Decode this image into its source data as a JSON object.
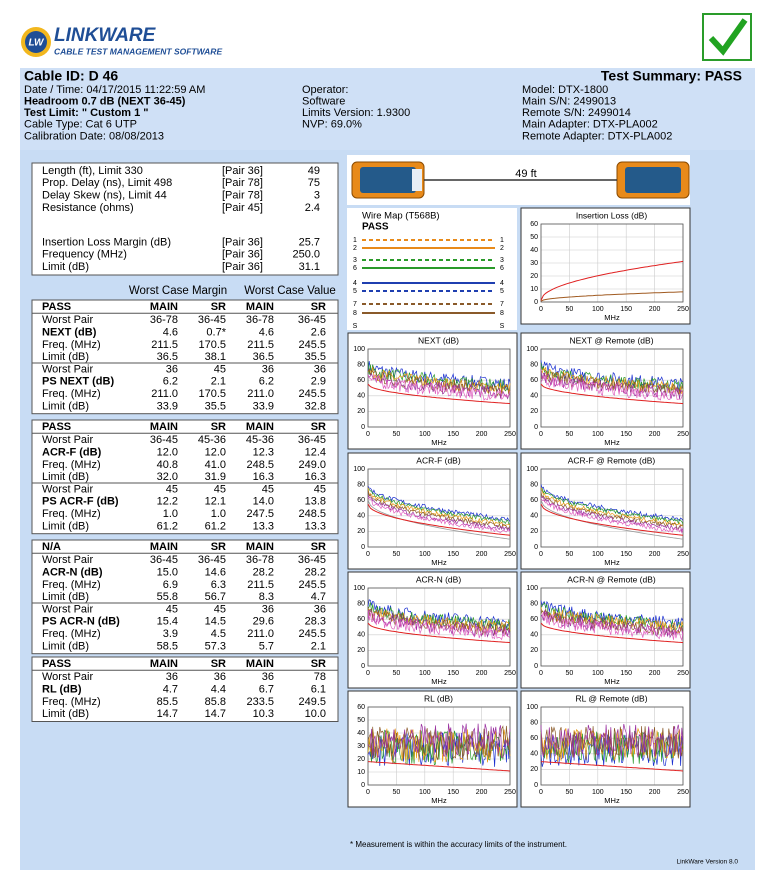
{
  "header": {
    "badge": "LW",
    "title": "LINKWARE",
    "subtitle": "CABLE TEST MANAGEMENT SOFTWARE"
  },
  "summary": {
    "cable_id": "Cable ID: D 46",
    "test_summary": "Test Summary: PASS",
    "left": [
      "Date / Time: 04/17/2015  11:22:59 AM",
      "Headroom 0.7 dB (NEXT 36-45)",
      "Test Limit: \" Custom 1 \"",
      "Cable Type: Cat 6 UTP",
      "Calibration Date: 08/08/2013"
    ],
    "middle": [
      "Operator:",
      "Software",
      "Limits Version: 1.9300",
      "NVP: 69.0%"
    ],
    "right": [
      "Model: DTX-1800",
      "Main S/N: 2499013",
      "Remote S/N: 2499014",
      "Main Adapter: DTX-PLA002",
      "Remote Adapter: DTX-PLA002"
    ]
  },
  "measurements": [
    [
      "Length (ft), Limit 330",
      "[Pair 36]",
      "49"
    ],
    [
      "Prop. Delay (ns), Limit 498",
      "[Pair 78]",
      "75"
    ],
    [
      "Delay Skew (ns), Limit 44",
      "[Pair 78]",
      "3"
    ],
    [
      "Resistance (ohms)",
      "[Pair 45]",
      "2.4"
    ],
    null,
    [
      "Insertion Loss Margin (dB)",
      "[Pair 36]",
      "25.7"
    ],
    [
      "Frequency (MHz)",
      "[Pair 36]",
      "250.0"
    ],
    [
      "Limit (dB)",
      "[Pair 36]",
      "31.1"
    ]
  ],
  "table": {
    "group_headers": [
      "Worst Case Margin",
      "Worst Case Value"
    ],
    "sections": [
      {
        "header": [
          "PASS",
          "MAIN",
          "SR",
          "MAIN",
          "SR"
        ],
        "rows": [
          [
            "Worst Pair",
            "36-78",
            "36-45",
            "36-78",
            "36-45"
          ],
          [
            "NEXT (dB)",
            "4.6",
            "0.7*",
            "4.6",
            "2.6"
          ],
          [
            "Freq. (MHz)",
            "211.5",
            "170.5",
            "211.5",
            "245.5"
          ],
          [
            "Limit (dB)",
            "36.5",
            "38.1",
            "36.5",
            "35.5"
          ],
          [
            "Worst Pair",
            "36",
            "45",
            "36",
            "36"
          ],
          [
            "PS NEXT (dB)",
            "6.2",
            "2.1",
            "6.2",
            "2.9"
          ],
          [
            "Freq. (MHz)",
            "211.0",
            "170.5",
            "211.0",
            "245.5"
          ],
          [
            "Limit (dB)",
            "33.9",
            "35.5",
            "33.9",
            "32.8"
          ]
        ]
      },
      {
        "header": [
          "PASS",
          "MAIN",
          "SR",
          "MAIN",
          "SR"
        ],
        "rows": [
          [
            "Worst Pair",
            "36-45",
            "45-36",
            "45-36",
            "36-45"
          ],
          [
            "ACR-F (dB)",
            "12.0",
            "12.0",
            "12.3",
            "12.4"
          ],
          [
            "Freq. (MHz)",
            "40.8",
            "41.0",
            "248.5",
            "249.0"
          ],
          [
            "Limit (dB)",
            "32.0",
            "31.9",
            "16.3",
            "16.3"
          ],
          [
            "Worst Pair",
            "45",
            "45",
            "45",
            "45"
          ],
          [
            "PS ACR-F (dB)",
            "12.2",
            "12.1",
            "14.0",
            "13.8"
          ],
          [
            "Freq. (MHz)",
            "1.0",
            "1.0",
            "247.5",
            "248.5"
          ],
          [
            "Limit (dB)",
            "61.2",
            "61.2",
            "13.3",
            "13.3"
          ]
        ]
      },
      {
        "header": [
          "N/A",
          "MAIN",
          "SR",
          "MAIN",
          "SR"
        ],
        "rows": [
          [
            "Worst Pair",
            "36-45",
            "36-45",
            "36-78",
            "36-45"
          ],
          [
            "ACR-N (dB)",
            "15.0",
            "14.6",
            "28.2",
            "28.2"
          ],
          [
            "Freq. (MHz)",
            "6.9",
            "6.3",
            "211.5",
            "245.5"
          ],
          [
            "Limit (dB)",
            "55.8",
            "56.7",
            "8.3",
            "4.7"
          ],
          [
            "Worst Pair",
            "45",
            "45",
            "36",
            "36"
          ],
          [
            "PS ACR-N (dB)",
            "15.4",
            "14.5",
            "29.6",
            "28.3"
          ],
          [
            "Freq. (MHz)",
            "3.9",
            "4.5",
            "211.0",
            "245.5"
          ],
          [
            "Limit (dB)",
            "58.5",
            "57.3",
            "5.7",
            "2.1"
          ]
        ]
      },
      {
        "header": [
          "PASS",
          "MAIN",
          "SR",
          "MAIN",
          "SR"
        ],
        "rows": [
          [
            "Worst Pair",
            "36",
            "36",
            "36",
            "78"
          ],
          [
            "RL (dB)",
            "4.7",
            "4.4",
            "6.7",
            "6.1"
          ],
          [
            "Freq. (MHz)",
            "85.5",
            "85.8",
            "233.5",
            "249.5"
          ],
          [
            "Limit (dB)",
            "14.7",
            "14.7",
            "10.3",
            "10.0"
          ]
        ]
      }
    ]
  },
  "cable_length": "49 ft",
  "wire_map": {
    "title": "Wire Map (T568B)",
    "status": "PASS",
    "pins": [
      "1",
      "2",
      "3",
      "6",
      "4",
      "5",
      "7",
      "8",
      "S"
    ]
  },
  "charts": [
    {
      "title": "Insertion Loss (dB)",
      "xlabel": "MHz",
      "xticks": [
        0,
        50,
        100,
        150,
        200,
        250
      ],
      "yticks": [
        0,
        10,
        20,
        30,
        40,
        50,
        60
      ]
    },
    {
      "title": "NEXT (dB)",
      "xlabel": "MHz",
      "xticks": [
        0,
        50,
        100,
        150,
        200,
        250
      ],
      "yticks": [
        0,
        20,
        40,
        60,
        80,
        100
      ]
    },
    {
      "title": "NEXT @ Remote (dB)",
      "xlabel": "MHz",
      "xticks": [
        0,
        50,
        100,
        150,
        200,
        250
      ],
      "yticks": [
        0,
        20,
        40,
        60,
        80,
        100
      ]
    },
    {
      "title": "ACR-F (dB)",
      "xlabel": "MHz",
      "xticks": [
        0,
        50,
        100,
        150,
        200,
        250
      ],
      "yticks": [
        0,
        20,
        40,
        60,
        80,
        100
      ]
    },
    {
      "title": "ACR-F @ Remote (dB)",
      "xlabel": "MHz",
      "xticks": [
        0,
        50,
        100,
        150,
        200,
        250
      ],
      "yticks": [
        0,
        20,
        40,
        60,
        80,
        100
      ]
    },
    {
      "title": "ACR-N (dB)",
      "xlabel": "MHz",
      "xticks": [
        0,
        50,
        100,
        150,
        200,
        250
      ],
      "yticks": [
        0,
        20,
        40,
        60,
        80,
        100
      ]
    },
    {
      "title": "ACR-N @ Remote (dB)",
      "xlabel": "MHz",
      "xticks": [
        0,
        50,
        100,
        150,
        200,
        250
      ],
      "yticks": [
        0,
        20,
        40,
        60,
        80,
        100
      ]
    },
    {
      "title": "RL (dB)",
      "xlabel": "MHz",
      "xticks": [
        0,
        50,
        100,
        150,
        200,
        250
      ],
      "yticks": [
        0,
        10,
        20,
        30,
        40,
        50,
        60
      ]
    },
    {
      "title": "RL @ Remote (dB)",
      "xlabel": "MHz",
      "xticks": [
        0,
        50,
        100,
        150,
        200,
        250
      ],
      "yticks": [
        0,
        20,
        40,
        60,
        80,
        100
      ]
    }
  ],
  "footnote": "* Measurement is within the accuracy limits of the instrument.",
  "version": "LinkWare Version 8.0"
}
